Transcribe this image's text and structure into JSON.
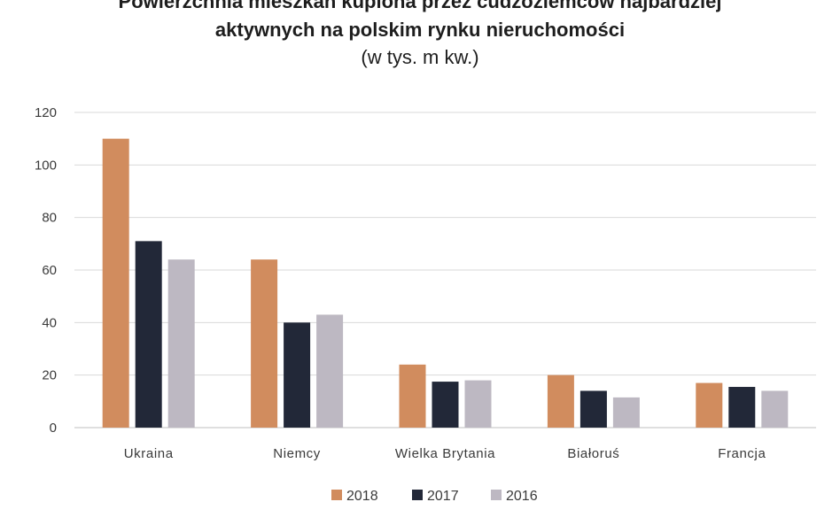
{
  "chart_data": {
    "type": "bar",
    "title": [
      "Powierzchnia mieszkań kupiona przez cudzoziemców najbardziej",
      "aktywnych na polskim rynku nieruchomości"
    ],
    "subtitle": "(w tys. m kw.)",
    "categories": [
      "Ukraina",
      "Niemcy",
      "Wielka Brytania",
      "Białoruś",
      "Francja"
    ],
    "series": [
      {
        "name": "2018",
        "color": "#d18c5e",
        "values": [
          110,
          64,
          24,
          20,
          17
        ]
      },
      {
        "name": "2017",
        "color": "#222838",
        "values": [
          71,
          40,
          17.5,
          14,
          15.5
        ]
      },
      {
        "name": "2016",
        "color": "#bdb8c2",
        "values": [
          64,
          43,
          18,
          11.5,
          14
        ]
      }
    ],
    "yticks": [
      0,
      20,
      40,
      60,
      80,
      100,
      120
    ],
    "ylim": [
      0,
      120
    ],
    "xlabel": "",
    "ylabel": "",
    "grid": true,
    "legend_position": "bottom"
  }
}
